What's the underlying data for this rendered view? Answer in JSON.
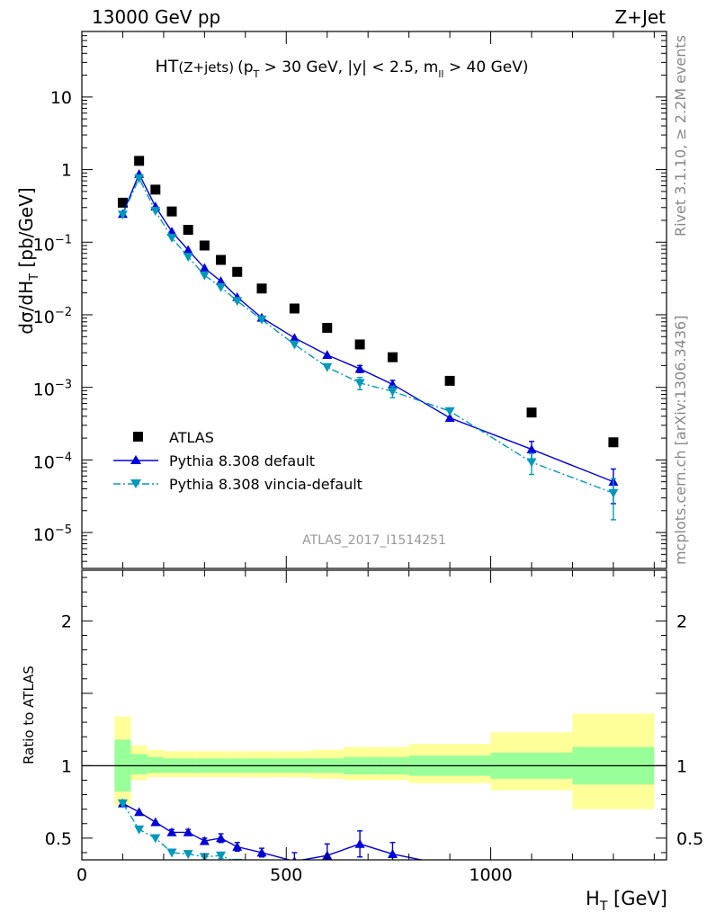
{
  "header": {
    "left": "13000 GeV pp",
    "right": "Z+Jet"
  },
  "side_labels": {
    "rivet": "Rivet 3.1.10, ≥ 2.2M events",
    "mcplots": "mcplots.cern.ch [arXiv:1306.3436]"
  },
  "top_panel": {
    "title_main": "HT",
    "title_sub": "(Z+jets)",
    "title_cuts_a": "(p",
    "title_cuts_a_sub": "T",
    "title_cuts_b": " > 30 GeV, |y| < 2.5, m",
    "title_cuts_b_sub": "ll",
    "title_cuts_c": " > 40 GeV)",
    "ylabel": "dσ/dH",
    "ylabel_sub": "T",
    "ylabel_unit": " [pb/GeV]",
    "watermark": "ATLAS_2017_I1514251",
    "y_ticks": [
      {
        "value": 10,
        "label": "10"
      },
      {
        "value": 1,
        "label": "1"
      },
      {
        "value": 0.1,
        "base": "10",
        "exp": "−1"
      },
      {
        "value": 0.01,
        "base": "10",
        "exp": "−2"
      },
      {
        "value": 0.001,
        "base": "10",
        "exp": "−3"
      },
      {
        "value": 0.0001,
        "base": "10",
        "exp": "−4"
      },
      {
        "value": 1e-05,
        "base": "10",
        "exp": "−5"
      }
    ]
  },
  "bottom_panel": {
    "ylabel": "Ratio to ATLAS",
    "y_ticks": [
      {
        "value": 0.5,
        "label": "0.5"
      },
      {
        "value": 1,
        "label": "1"
      },
      {
        "value": 2,
        "label": "2"
      }
    ]
  },
  "xaxis": {
    "label": "H",
    "label_sub": "T",
    "label_unit": " [GeV]",
    "ticks": [
      {
        "value": 0,
        "label": "0"
      },
      {
        "value": 500,
        "label": "500"
      },
      {
        "value": 1000,
        "label": "1000"
      }
    ]
  },
  "legend": [
    {
      "key": "data",
      "label": "ATLAS"
    },
    {
      "key": "pythia",
      "label": "Pythia 8.308 default"
    },
    {
      "key": "vincia",
      "label": "Pythia 8.308 vincia-default"
    }
  ],
  "colors": {
    "data": "#000000",
    "pythia": "#0000dd",
    "vincia": "#0099bb",
    "band_inner": "#99ff99",
    "band_outer": "#ffff99"
  },
  "chart_data": {
    "type": "scatter",
    "x_scale": "linear",
    "xlim": [
      0,
      1430
    ],
    "main_yscale": "log",
    "main_ylim": [
      3.2e-06,
      80
    ],
    "ratio_ylim": [
      0.35,
      2.35
    ],
    "bins": [
      {
        "lo": 80,
        "hi": 120,
        "x": 100
      },
      {
        "lo": 120,
        "hi": 160,
        "x": 140
      },
      {
        "lo": 160,
        "hi": 200,
        "x": 180
      },
      {
        "lo": 200,
        "hi": 240,
        "x": 220
      },
      {
        "lo": 240,
        "hi": 280,
        "x": 260
      },
      {
        "lo": 280,
        "hi": 320,
        "x": 300
      },
      {
        "lo": 320,
        "hi": 360,
        "x": 340
      },
      {
        "lo": 360,
        "hi": 400,
        "x": 380
      },
      {
        "lo": 400,
        "hi": 480,
        "x": 440
      },
      {
        "lo": 480,
        "hi": 560,
        "x": 520
      },
      {
        "lo": 560,
        "hi": 640,
        "x": 600
      },
      {
        "lo": 640,
        "hi": 720,
        "x": 680
      },
      {
        "lo": 720,
        "hi": 800,
        "x": 760
      },
      {
        "lo": 800,
        "hi": 1000,
        "x": 900
      },
      {
        "lo": 1000,
        "hi": 1200,
        "x": 1100
      },
      {
        "lo": 1200,
        "hi": 1400,
        "x": 1300
      }
    ],
    "series": [
      {
        "name": "ATLAS",
        "key": "data",
        "values": [
          0.35,
          1.32,
          0.53,
          0.265,
          0.148,
          0.09,
          0.057,
          0.039,
          0.023,
          0.0122,
          0.0066,
          0.0039,
          0.0026,
          0.00123,
          0.00045,
          0.000175
        ]
      },
      {
        "name": "Pythia 8.308 default",
        "key": "pythia",
        "values": [
          0.245,
          0.87,
          0.31,
          0.14,
          0.078,
          0.044,
          0.029,
          0.0175,
          0.0091,
          0.0048,
          0.0028,
          0.0018,
          0.0011,
          0.00038,
          0.00014,
          5e-05
        ],
        "errors": [
          0,
          0,
          0,
          0,
          0,
          0,
          0,
          0,
          0,
          0,
          0,
          0.0002,
          0.00015,
          0,
          4e-05,
          2.5e-05
        ]
      },
      {
        "name": "Pythia 8.308 vincia-default",
        "key": "vincia",
        "values": [
          0.24,
          0.76,
          0.27,
          0.115,
          0.063,
          0.035,
          0.024,
          0.0155,
          0.0086,
          0.0039,
          0.0019,
          0.00115,
          0.00088,
          0.00047,
          9.3e-05,
          3.5e-05
        ],
        "errors": [
          0,
          0,
          0,
          0,
          0,
          0,
          0,
          0,
          0,
          0,
          0,
          0.00022,
          0.00016,
          0,
          3e-05,
          2e-05
        ]
      }
    ],
    "ratios": [
      {
        "key": "pythia",
        "values": [
          0.74,
          0.68,
          0.61,
          0.54,
          0.54,
          0.48,
          0.5,
          0.44,
          0.4,
          0.34,
          0.38,
          0.46,
          0.39,
          0.31,
          0.3,
          0.28
        ],
        "errors": [
          0,
          0,
          0,
          0.02,
          0.02,
          0.02,
          0.03,
          0.03,
          0.03,
          0.06,
          0.08,
          0.09,
          0.08,
          0,
          0,
          0
        ]
      },
      {
        "key": "vincia",
        "values": [
          0.74,
          0.56,
          0.5,
          0.4,
          0.39,
          0.37,
          0.38,
          0.33,
          0.32,
          0.3,
          0.29,
          0.3,
          0.3,
          0.29,
          0.28,
          0.27
        ],
        "errors": [
          0,
          0,
          0,
          0,
          0,
          0.02,
          0.02,
          0.02,
          0,
          0,
          0,
          0,
          0,
          0,
          0,
          0
        ]
      }
    ],
    "uncertainty_band": {
      "inner": [
        [
          0.82,
          1.18
        ],
        [
          0.94,
          1.08
        ],
        [
          0.95,
          1.06
        ],
        [
          0.95,
          1.05
        ],
        [
          0.95,
          1.05
        ],
        [
          0.95,
          1.05
        ],
        [
          0.95,
          1.05
        ],
        [
          0.95,
          1.05
        ],
        [
          0.95,
          1.05
        ],
        [
          0.95,
          1.05
        ],
        [
          0.95,
          1.05
        ],
        [
          0.94,
          1.06
        ],
        [
          0.94,
          1.06
        ],
        [
          0.93,
          1.07
        ],
        [
          0.91,
          1.09
        ],
        [
          0.87,
          1.13
        ]
      ],
      "outer": [
        [
          0.72,
          1.34
        ],
        [
          0.9,
          1.14
        ],
        [
          0.92,
          1.11
        ],
        [
          0.92,
          1.1
        ],
        [
          0.92,
          1.1
        ],
        [
          0.92,
          1.1
        ],
        [
          0.92,
          1.1
        ],
        [
          0.92,
          1.1
        ],
        [
          0.92,
          1.1
        ],
        [
          0.92,
          1.1
        ],
        [
          0.91,
          1.11
        ],
        [
          0.9,
          1.13
        ],
        [
          0.9,
          1.13
        ],
        [
          0.88,
          1.15
        ],
        [
          0.83,
          1.23
        ],
        [
          0.7,
          1.36
        ]
      ]
    }
  }
}
